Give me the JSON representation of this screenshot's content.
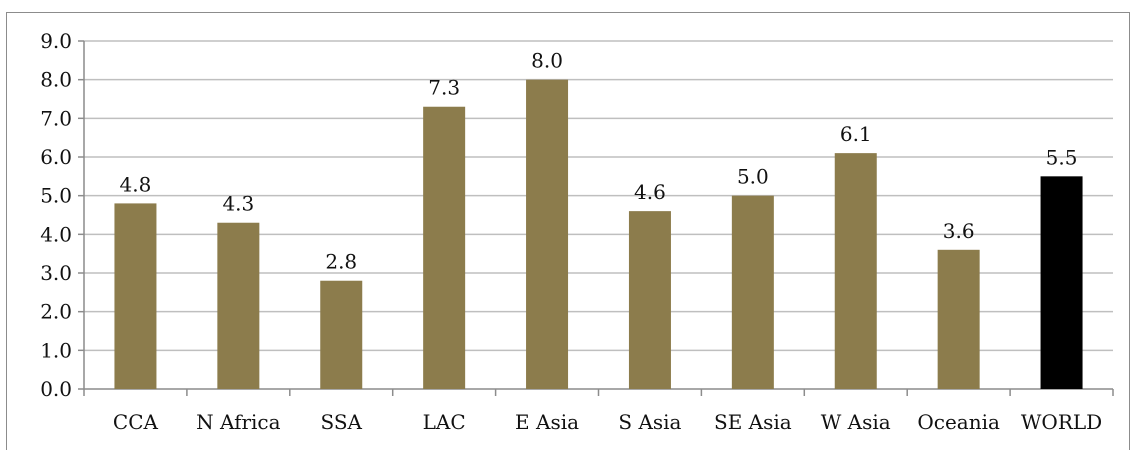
{
  "chart_data": {
    "type": "bar",
    "categories": [
      "CCA",
      "N Africa",
      "SSA",
      "LAC",
      "E Asia",
      "S Asia",
      "SE Asia",
      "W Asia",
      "Oceania",
      "WORLD"
    ],
    "values": [
      4.8,
      4.3,
      2.8,
      7.3,
      8.0,
      4.6,
      5.0,
      6.1,
      3.6,
      5.5
    ],
    "data_labels": [
      "4.8",
      "4.3",
      "2.8",
      "7.3",
      "8.0",
      "4.6",
      "5.0",
      "6.1",
      "3.6",
      "5.5"
    ],
    "y_ticks": [
      "0.0",
      "1.0",
      "2.0",
      "3.0",
      "4.0",
      "5.0",
      "6.0",
      "7.0",
      "8.0",
      "9.0"
    ],
    "ylim": [
      0,
      9
    ],
    "grid": true,
    "legend": "none",
    "colors": {
      "bar": "#8c7c4c",
      "highlight_bar": "#000000",
      "gridline": "#bfbfbf",
      "axis": "#8c8c8c"
    },
    "highlight_category": "WORLD"
  }
}
